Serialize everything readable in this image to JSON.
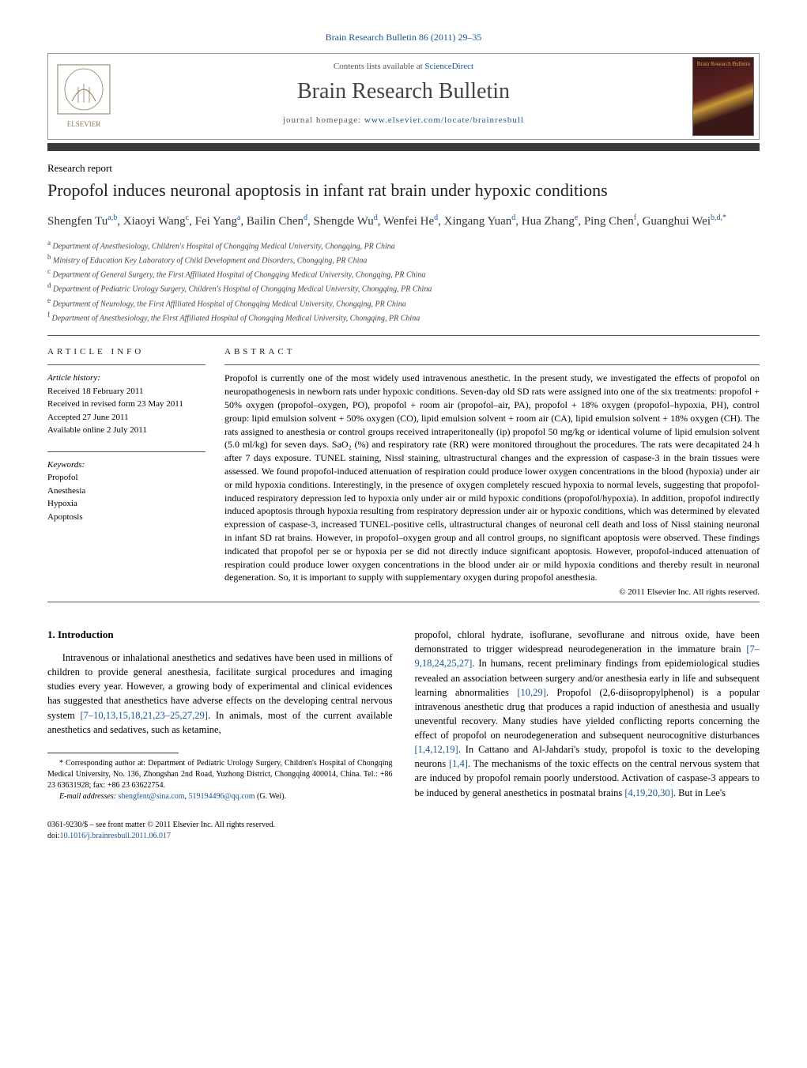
{
  "top_banner": "Brain Research Bulletin 86 (2011) 29–35",
  "header": {
    "contents_prefix": "Contents lists available at ",
    "contents_link": "ScienceDirect",
    "journal_name": "Brain Research Bulletin",
    "homepage_prefix": "journal homepage: ",
    "homepage_link": "www.elsevier.com/locate/brainresbull",
    "cover_text": "Brain Research\nBulletin"
  },
  "article_type": "Research report",
  "title": "Propofol induces neuronal apoptosis in infant rat brain under hypoxic conditions",
  "authors_html": "Shengfen Tu<sup>a,b</sup>, Xiaoyi Wang<sup>c</sup>, Fei Yang<sup>a</sup>, Bailin Chen<sup>d</sup>, Shengde Wu<sup>d</sup>, Wenfei He<sup>d</sup>, Xingang Yuan<sup>d</sup>, Hua Zhang<sup>e</sup>, Ping Chen<sup>f</sup>, Guanghui Wei<sup>b,d,*</sup>",
  "affiliations": [
    {
      "sup": "a",
      "text": "Department of Anesthesiology, Children's Hospital of Chongqing Medical University, Chongqing, PR China"
    },
    {
      "sup": "b",
      "text": "Ministry of Education Key Laboratory of Child Development and Disorders, Chongqing, PR China"
    },
    {
      "sup": "c",
      "text": "Department of General Surgery, the First Affiliated Hospital of Chongqing Medical University, Chongqing, PR China"
    },
    {
      "sup": "d",
      "text": "Department of Pediatric Urology Surgery, Children's Hospital of Chongqing Medical University, Chongqing, PR China"
    },
    {
      "sup": "e",
      "text": "Department of Neurology, the First Affiliated Hospital of Chongqing Medical University, Chongqing, PR China"
    },
    {
      "sup": "f",
      "text": "Department of Anesthesiology, the First Affiliated Hospital of Chongqing Medical University, Chongqing, PR China"
    }
  ],
  "info": {
    "header": "ARTICLE INFO",
    "history_label": "Article history:",
    "history": [
      "Received 18 February 2011",
      "Received in revised form 23 May 2011",
      "Accepted 27 June 2011",
      "Available online 2 July 2011"
    ],
    "keywords_label": "Keywords:",
    "keywords": [
      "Propofol",
      "Anesthesia",
      "Hypoxia",
      "Apoptosis"
    ]
  },
  "abstract": {
    "header": "ABSTRACT",
    "text": "Propofol is currently one of the most widely used intravenous anesthetic. In the present study, we investigated the effects of propofol on neuropathogenesis in newborn rats under hypoxic conditions. Seven-day old SD rats were assigned into one of the six treatments: propofol + 50% oxygen (propofol–oxygen, PO), propofol + room air (propofol–air, PA), propofol + 18% oxygen (propofol–hypoxia, PH), control group: lipid emulsion solvent + 50% oxygen (CO), lipid emulsion solvent + room air (CA), lipid emulsion solvent + 18% oxygen (CH). The rats assigned to anesthesia or control groups received intraperitoneally (ip) propofol 50 mg/kg or identical volume of lipid emulsion solvent (5.0 ml/kg) for seven days. SaO₂ (%) and respiratory rate (RR) were monitored throughout the procedures. The rats were decapitated 24 h after 7 days exposure. TUNEL staining, Nissl staining, ultrastructural changes and the expression of caspase-3 in the brain tissues were assessed. We found propofol-induced attenuation of respiration could produce lower oxygen concentrations in the blood (hypoxia) under air or mild hypoxia conditions. Interestingly, in the presence of oxygen completely rescued hypoxia to normal levels, suggesting that propofol-induced respiratory depression led to hypoxia only under air or mild hypoxic conditions (propofol/hypoxia). In addition, propofol indirectly induced apoptosis through hypoxia resulting from respiratory depression under air or hypoxic conditions, which was determined by elevated expression of caspase-3, increased TUNEL-positive cells, ultrastructural changes of neuronal cell death and loss of Nissl staining neuronal in infant SD rat brains. However, in propofol–oxygen group and all control groups, no significant apoptosis were observed. These findings indicated that propofol per se or hypoxia per se did not directly induce significant apoptosis. However, propofol-induced attenuation of respiration could produce lower oxygen concentrations in the blood under air or mild hypoxia conditions and thereby result in neuronal degeneration. So, it is important to supply with supplementary oxygen during propofol anesthesia.",
    "copyright": "© 2011 Elsevier Inc. All rights reserved."
  },
  "intro": {
    "heading": "1.  Introduction",
    "para1_pre": "Intravenous or inhalational anesthetics and sedatives have been used in millions of children to provide general anesthesia, facilitate surgical procedures and imaging studies every year. However, a growing body of experimental and clinical evidences has suggested that anesthetics have adverse effects on the developing central nervous system ",
    "ref1": "[7–10,13,15,18,21,23–25,27,29]",
    "para1_post": ". In animals, most of the current available anesthetics and sedatives, such as ketamine,",
    "para2_pre": "propofol, chloral hydrate, isoflurane, sevoflurane and nitrous oxide, have been demonstrated to trigger widespread neurodegeneration in the immature brain ",
    "ref2": "[7–9,18,24,25,27]",
    "para2_mid1": ". In humans, recent preliminary findings from epidemiological studies revealed an association between surgery and/or anesthesia early in life and subsequent learning abnormalities ",
    "ref3": "[10,29]",
    "para2_mid2": ". Propofol (2,6-diisopropylphenol) is a popular intravenous anesthetic drug that produces a rapid induction of anesthesia and usually uneventful recovery. Many studies have yielded conflicting reports concerning the effect of propofol on neurodegeneration and subsequent neurocognitive disturbances ",
    "ref4": "[1,4,12,19]",
    "para2_mid3": ". In Cattano and Al-Jahdari's study, propofol is toxic to the developing neurons ",
    "ref5": "[1,4]",
    "para2_mid4": ". The mechanisms of the toxic effects on the central nervous system that are induced by propofol remain poorly understood. Activation of caspase-3 appears to be induced by general anesthetics in postnatal brains ",
    "ref6": "[4,19,20,30]",
    "para2_post": ". But in Lee's"
  },
  "footnote": {
    "corr_prefix": "* Corresponding author at: Department of Pediatric Urology Surgery, Children's Hospital of Chongqing Medical University, No. 136, Zhongshan 2nd Road, Yuzhong District, Chongqing 400014, China. Tel.: +86 23 63631928; fax: +86 23 63622754.",
    "email_label": "E-mail addresses: ",
    "email1": "shengfent@sina.com",
    "email_sep": ", ",
    "email2": "519194496@qq.com",
    "email_tail": " (G. Wei)."
  },
  "footer": {
    "line1": "0361-9230/$ – see front matter © 2011 Elsevier Inc. All rights reserved.",
    "doi_prefix": "doi:",
    "doi": "10.1016/j.brainresbull.2011.06.017"
  },
  "colors": {
    "link": "#1a5490",
    "bar": "#3a3a3a",
    "rule": "#555555"
  }
}
